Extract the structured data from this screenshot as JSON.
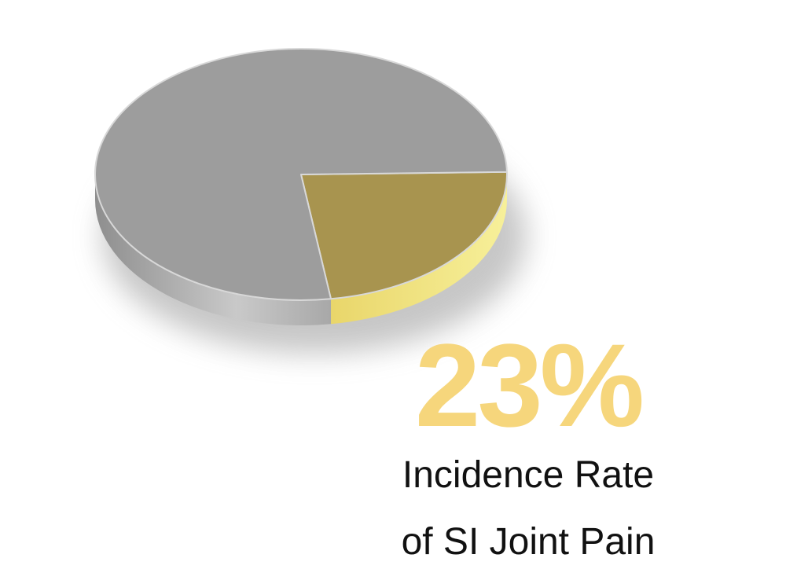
{
  "chart_data": {
    "type": "pie",
    "values": [
      23,
      77
    ],
    "value_labels": [
      "23%",
      null
    ],
    "colors": [
      "#a8944f",
      "#9d9d9d"
    ],
    "title": [
      "Incidence Rate",
      "of SI Joint Pain"
    ]
  }
}
